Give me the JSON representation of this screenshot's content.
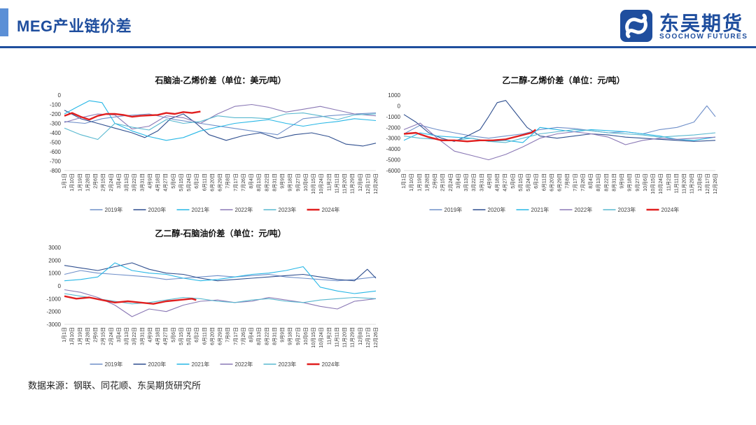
{
  "header": {
    "title": "MEG产业链价差"
  },
  "brand": {
    "name_cn": "东吴期货",
    "name_en": "SOOCHOW FUTURES",
    "color": "#1f4e9e"
  },
  "source": "数据来源：钢联、同花顺、东吴期货研究所",
  "series_colors": {
    "2019年": "#6f8fc9",
    "2020年": "#2f4f8f",
    "2021年": "#27b7e6",
    "2022年": "#8a78b5",
    "2023年": "#58b8cf",
    "2024年": "#e01f1f"
  },
  "chart_data": [
    {
      "type": "line",
      "title": "石脑油-乙烯价差（单位：美元/吨）",
      "ylim": [
        -800,
        0
      ],
      "yticks": [
        0,
        -100,
        -200,
        -300,
        -400,
        -500,
        -600,
        -700,
        -800
      ],
      "x_ticks": [
        "1月1日",
        "1月10日",
        "1月19日",
        "1月28日",
        "2月6日",
        "2月15日",
        "2月24日",
        "3月4日",
        "3月13日",
        "3月22日",
        "3月31日",
        "4月9日",
        "4月18日",
        "4月27日",
        "5月6日",
        "5月15日",
        "5月24日",
        "6月2日",
        "6月11日",
        "6月20日",
        "6月29日",
        "7月8日",
        "7月17日",
        "7月26日",
        "8月4日",
        "8月13日",
        "8月22日",
        "8月31日",
        "9月9日",
        "9月18日",
        "9月27日",
        "10月6日",
        "10月15日",
        "10月24日",
        "11月2日",
        "11月11日",
        "11月20日",
        "11月29日",
        "12月8日",
        "12月17日",
        "12月26日"
      ],
      "legend": "bottom",
      "series": [
        {
          "name": "2019年",
          "x": [
            1,
            25,
            45,
            70,
            100,
            130,
            160,
            190,
            220,
            250,
            280,
            310,
            340,
            365
          ],
          "values": [
            -280,
            -300,
            -250,
            -220,
            -200,
            -260,
            -300,
            -340,
            -380,
            -420,
            -250,
            -220,
            -200,
            -190
          ]
        },
        {
          "name": "2020年",
          "x": [
            1,
            20,
            40,
            60,
            80,
            95,
            110,
            125,
            140,
            155,
            170,
            190,
            210,
            230,
            250,
            270,
            290,
            310,
            330,
            350,
            365
          ],
          "values": [
            -160,
            -250,
            -300,
            -350,
            -400,
            -450,
            -380,
            -250,
            -200,
            -300,
            -420,
            -480,
            -430,
            -400,
            -460,
            -420,
            -400,
            -440,
            -520,
            -540,
            -510
          ]
        },
        {
          "name": "2021年",
          "x": [
            1,
            15,
            30,
            45,
            60,
            80,
            100,
            120,
            140,
            160,
            180,
            200,
            220,
            240,
            260,
            280,
            300,
            320,
            340,
            365
          ],
          "values": [
            -200,
            -130,
            -60,
            -80,
            -300,
            -380,
            -440,
            -480,
            -450,
            -380,
            -340,
            -300,
            -280,
            -260,
            -300,
            -330,
            -300,
            -280,
            -250,
            -270
          ]
        },
        {
          "name": "2022年",
          "x": [
            1,
            20,
            40,
            60,
            80,
            100,
            120,
            140,
            160,
            180,
            200,
            220,
            240,
            260,
            280,
            300,
            320,
            340,
            365
          ],
          "values": [
            -290,
            -240,
            -200,
            -210,
            -360,
            -330,
            -220,
            -240,
            -300,
            -200,
            -120,
            -100,
            -130,
            -180,
            -150,
            -120,
            -160,
            -200,
            -220
          ]
        },
        {
          "name": "2023年",
          "x": [
            1,
            20,
            40,
            60,
            80,
            100,
            120,
            140,
            160,
            180,
            200,
            220,
            240,
            260,
            280,
            300,
            320,
            340,
            365
          ],
          "values": [
            -350,
            -420,
            -470,
            -300,
            -340,
            -370,
            -260,
            -300,
            -280,
            -220,
            -240,
            -240,
            -250,
            -200,
            -190,
            -220,
            -260,
            -210,
            -200
          ]
        },
        {
          "name": "2024年",
          "x": [
            1,
            10,
            20,
            30,
            40,
            50,
            60,
            70,
            80,
            90,
            100,
            110,
            120,
            130,
            140,
            150,
            160
          ],
          "values": [
            -220,
            -190,
            -230,
            -260,
            -220,
            -200,
            -200,
            -210,
            -230,
            -220,
            -215,
            -210,
            -190,
            -200,
            -180,
            -190,
            -175
          ]
        }
      ]
    },
    {
      "type": "line",
      "title": "乙二醇-乙烯价差（单位：元/吨）",
      "ylim": [
        -6000,
        1000
      ],
      "yticks": [
        1000,
        0,
        -1000,
        -2000,
        -3000,
        -4000,
        -5000,
        -6000
      ],
      "x_ticks": [
        "1月1日",
        "1月10日",
        "1月19日",
        "1月28日",
        "2月6日",
        "2月15日",
        "2月24日",
        "3月4日",
        "3月13日",
        "3月22日",
        "3月31日",
        "4月9日",
        "4月18日",
        "4月27日",
        "5月6日",
        "5月15日",
        "5月24日",
        "6月2日",
        "6月11日",
        "6月20日",
        "6月29日",
        "7月8日",
        "7月17日",
        "7月26日",
        "8月4日",
        "8月13日",
        "8月22日",
        "8月31日",
        "9月9日",
        "9月18日",
        "9月27日",
        "10月6日",
        "10月15日",
        "10月24日",
        "11月2日",
        "11月11日",
        "11月20日",
        "11月29日",
        "12月8日",
        "12月17日",
        "12月26日"
      ],
      "legend": "bottom",
      "series": [
        {
          "name": "2019年",
          "x": [
            1,
            20,
            40,
            60,
            80,
            100,
            120,
            140,
            160,
            180,
            200,
            220,
            240,
            260,
            280,
            300,
            320,
            340,
            355,
            365
          ],
          "values": [
            -2600,
            -1800,
            -2200,
            -2500,
            -2800,
            -3000,
            -2800,
            -2600,
            -2200,
            -2000,
            -2100,
            -2300,
            -2500,
            -2400,
            -2600,
            -2200,
            -2000,
            -1500,
            0,
            -1000
          ]
        },
        {
          "name": "2020年",
          "x": [
            1,
            15,
            30,
            45,
            60,
            75,
            90,
            100,
            110,
            120,
            130,
            145,
            160,
            180,
            200,
            220,
            240,
            260,
            280,
            300,
            320,
            340,
            365
          ],
          "values": [
            -800,
            -1500,
            -2500,
            -3000,
            -3300,
            -2800,
            -2200,
            -1000,
            300,
            500,
            -500,
            -2000,
            -2800,
            -3000,
            -2800,
            -2600,
            -2700,
            -2900,
            -3000,
            -3100,
            -3200,
            -3300,
            -3200
          ]
        },
        {
          "name": "2021年",
          "x": [
            1,
            20,
            40,
            60,
            80,
            100,
            120,
            140,
            160,
            180,
            200,
            220,
            240,
            260,
            280,
            300,
            320,
            340,
            365
          ],
          "values": [
            -3200,
            -2500,
            -2800,
            -2900,
            -3000,
            -3300,
            -3200,
            -3400,
            -2000,
            -2200,
            -2400,
            -2200,
            -2300,
            -2400,
            -2600,
            -2800,
            -3100,
            -3200,
            -2900
          ]
        },
        {
          "name": "2022年",
          "x": [
            1,
            20,
            40,
            60,
            80,
            100,
            120,
            140,
            160,
            180,
            200,
            220,
            240,
            260,
            280,
            300,
            320,
            340,
            365
          ],
          "values": [
            -2200,
            -1600,
            -3000,
            -4200,
            -4600,
            -5000,
            -4500,
            -3800,
            -3000,
            -2600,
            -2400,
            -2600,
            -2900,
            -3600,
            -3200,
            -3000,
            -3100,
            -3000,
            -2900
          ]
        },
        {
          "name": "2023年",
          "x": [
            1,
            20,
            40,
            60,
            80,
            100,
            120,
            140,
            160,
            180,
            200,
            220,
            240,
            260,
            280,
            300,
            320,
            340,
            365
          ],
          "values": [
            -2800,
            -3000,
            -3100,
            -3200,
            -3000,
            -3300,
            -3400,
            -3000,
            -2600,
            -2400,
            -2200,
            -2300,
            -2500,
            -2600,
            -2700,
            -2900,
            -2800,
            -2700,
            -2500
          ]
        },
        {
          "name": "2024年",
          "x": [
            1,
            15,
            30,
            45,
            60,
            75,
            90,
            105,
            120,
            135,
            150,
            155
          ],
          "values": [
            -2600,
            -2500,
            -2900,
            -3200,
            -3200,
            -3300,
            -3200,
            -3200,
            -3100,
            -2800,
            -2500,
            -2200
          ]
        }
      ]
    },
    {
      "type": "line",
      "title": "乙二醇-石脑油价差（单位：元/吨）",
      "ylim": [
        -3000,
        3000
      ],
      "yticks": [
        3000,
        2000,
        1000,
        0,
        -1000,
        -2000,
        -3000
      ],
      "x_ticks": [
        "1月1日",
        "1月10日",
        "1月19日",
        "1月28日",
        "2月6日",
        "2月15日",
        "2月24日",
        "3月4日",
        "3月13日",
        "3月22日",
        "3月31日",
        "4月9日",
        "4月18日",
        "4月27日",
        "5月6日",
        "5月15日",
        "5月24日",
        "6月2日",
        "6月11日",
        "6月20日",
        "6月29日",
        "7月8日",
        "7月17日",
        "7月26日",
        "8月4日",
        "8月13日",
        "8月22日",
        "8月31日",
        "9月9日",
        "9月18日",
        "9月27日",
        "10月6日",
        "10月15日",
        "10月24日",
        "11月2日",
        "11月11日",
        "11月20日",
        "11月29日",
        "12月8日",
        "12月17日",
        "12月26日"
      ],
      "legend": "bottom",
      "series": [
        {
          "name": "2019年",
          "x": [
            1,
            20,
            40,
            60,
            80,
            100,
            120,
            140,
            160,
            180,
            200,
            220,
            240,
            260,
            280,
            300,
            320,
            340,
            365
          ],
          "values": [
            900,
            1200,
            1000,
            900,
            800,
            700,
            500,
            600,
            700,
            800,
            700,
            800,
            900,
            700,
            600,
            500,
            400,
            500,
            700
          ]
        },
        {
          "name": "2020年",
          "x": [
            1,
            20,
            40,
            60,
            80,
            100,
            120,
            140,
            160,
            180,
            200,
            220,
            240,
            260,
            280,
            300,
            320,
            340,
            355,
            365
          ],
          "values": [
            1600,
            1400,
            1200,
            1500,
            1800,
            1300,
            1000,
            900,
            600,
            400,
            500,
            600,
            700,
            800,
            900,
            700,
            500,
            400,
            1300,
            600
          ]
        },
        {
          "name": "2021年",
          "x": [
            1,
            20,
            40,
            60,
            80,
            100,
            120,
            140,
            160,
            180,
            200,
            220,
            240,
            260,
            280,
            300,
            320,
            340,
            365
          ],
          "values": [
            400,
            500,
            700,
            1800,
            1200,
            1000,
            900,
            600,
            400,
            500,
            700,
            900,
            1000,
            1200,
            1500,
            -100,
            -400,
            -600,
            -400
          ]
        },
        {
          "name": "2022年",
          "x": [
            1,
            20,
            40,
            60,
            80,
            100,
            120,
            140,
            160,
            180,
            200,
            220,
            240,
            260,
            280,
            300,
            320,
            340,
            365
          ],
          "values": [
            -300,
            -500,
            -900,
            -1500,
            -2400,
            -1800,
            -2000,
            -1500,
            -1200,
            -1100,
            -1300,
            -1200,
            -900,
            -1100,
            -1300,
            -1600,
            -1800,
            -1200,
            -1000
          ]
        },
        {
          "name": "2023年",
          "x": [
            1,
            20,
            40,
            60,
            80,
            100,
            120,
            140,
            160,
            180,
            200,
            220,
            240,
            260,
            280,
            300,
            320,
            340,
            365
          ],
          "values": [
            -600,
            -800,
            -1000,
            -1200,
            -1400,
            -1300,
            -1100,
            -900,
            -1000,
            -1200,
            -1300,
            -1100,
            -1000,
            -1200,
            -1300,
            -1100,
            -1000,
            -900,
            -1000
          ]
        },
        {
          "name": "2024年",
          "x": [
            1,
            15,
            30,
            45,
            60,
            75,
            90,
            105,
            120,
            135,
            150,
            155
          ],
          "values": [
            -800,
            -1000,
            -900,
            -1100,
            -1300,
            -1200,
            -1300,
            -1400,
            -1200,
            -1100,
            -1000,
            -1100
          ]
        }
      ]
    }
  ]
}
